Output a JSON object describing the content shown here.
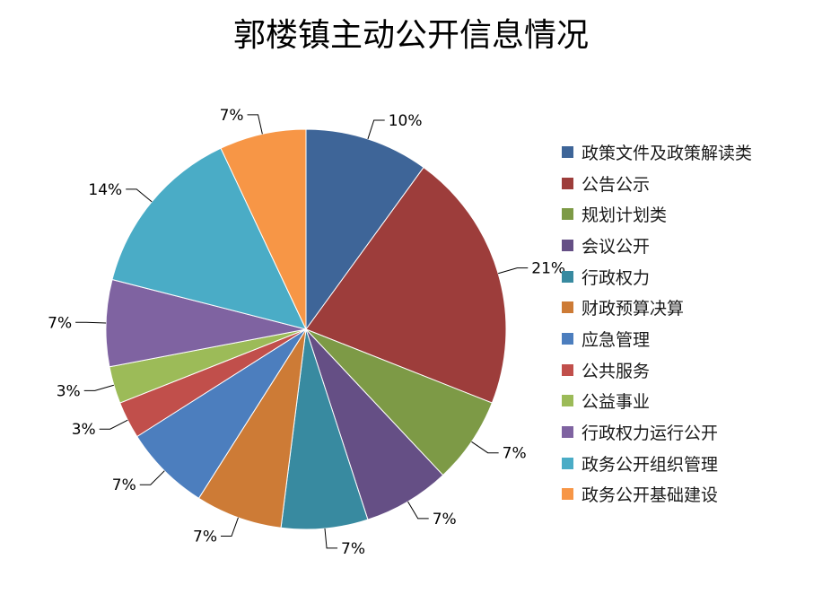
{
  "chart_data": {
    "type": "pie",
    "title": "郭楼镇主动公开信息情况",
    "slices": [
      {
        "name": "政策文件及政策解读类",
        "value": 10,
        "label": "10%",
        "color": "#3e6598"
      },
      {
        "name": "公告公示",
        "value": 21,
        "label": "21%",
        "color": "#9d3d3b"
      },
      {
        "name": "规划计划类",
        "value": 7,
        "label": "7%",
        "color": "#7d9a46"
      },
      {
        "name": "会议公开",
        "value": 7,
        "label": "7%",
        "color": "#654f85"
      },
      {
        "name": "行政权力",
        "value": 7,
        "label": "7%",
        "color": "#388aa0"
      },
      {
        "name": "财政预算决算",
        "value": 7,
        "label": "7%",
        "color": "#cd7b36"
      },
      {
        "name": "应急管理",
        "value": 7,
        "label": "7%",
        "color": "#4c7ebe"
      },
      {
        "name": "公共服务",
        "value": 3,
        "label": "3%",
        "color": "#c14f4b"
      },
      {
        "name": "公益事业",
        "value": 3,
        "label": "3%",
        "color": "#9cbb58"
      },
      {
        "name": "行政权力运行公开",
        "value": 7,
        "label": "7%",
        "color": "#7f63a1"
      },
      {
        "name": "政务公开组织管理",
        "value": 14,
        "label": "14%",
        "color": "#4aacc6"
      },
      {
        "name": "政务公开基础建设",
        "value": 7,
        "label": "7%",
        "color": "#f79646"
      }
    ],
    "legend": "right"
  }
}
